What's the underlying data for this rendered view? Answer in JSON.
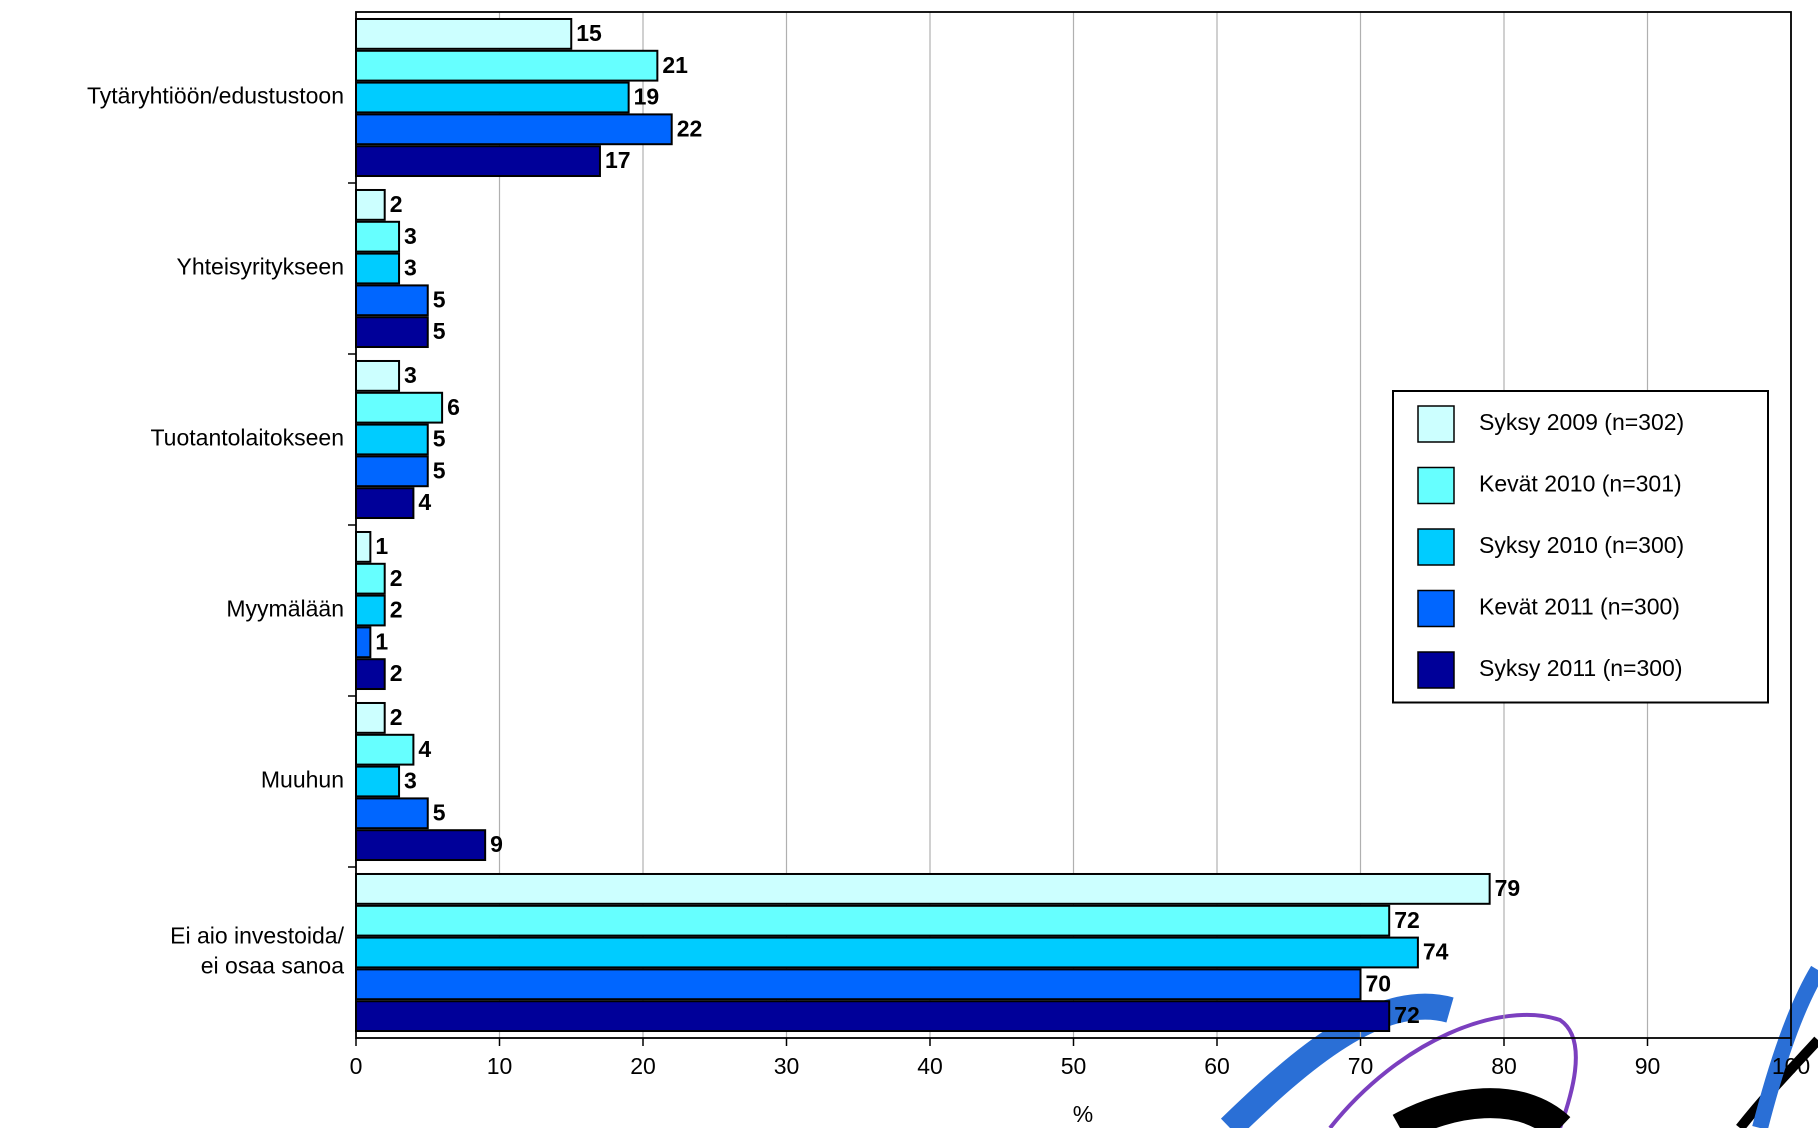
{
  "chart_data": {
    "type": "bar",
    "orientation": "horizontal",
    "categories": [
      "Tytäryhtiöön/edustustoon",
      "Yhteisyritykseen",
      "Tuotantolaitokseen",
      "Myymälään",
      "Muuhun",
      "Ei aio investoida/\nei osaa sanoa"
    ],
    "series": [
      {
        "name": "Syksy 2009 (n=302)",
        "color": "#ccffff",
        "values": [
          15,
          2,
          3,
          1,
          2,
          79
        ]
      },
      {
        "name": "Kevät 2010 (n=301)",
        "color": "#66ffff",
        "values": [
          21,
          3,
          6,
          2,
          4,
          72
        ]
      },
      {
        "name": "Syksy 2010 (n=300)",
        "color": "#00ccff",
        "values": [
          19,
          3,
          5,
          2,
          3,
          74
        ]
      },
      {
        "name": "Kevät 2011 (n=300)",
        "color": "#0066ff",
        "values": [
          22,
          5,
          5,
          1,
          5,
          70
        ]
      },
      {
        "name": "Syksy 2011 (n=300)",
        "color": "#000099",
        "values": [
          17,
          5,
          4,
          2,
          9,
          72
        ]
      }
    ],
    "xlabel": "%",
    "xlim": [
      0,
      100
    ],
    "xticks": [
      0,
      10,
      20,
      30,
      40,
      50,
      60,
      70,
      80,
      90,
      100
    ],
    "grid": true,
    "legend": "right"
  }
}
